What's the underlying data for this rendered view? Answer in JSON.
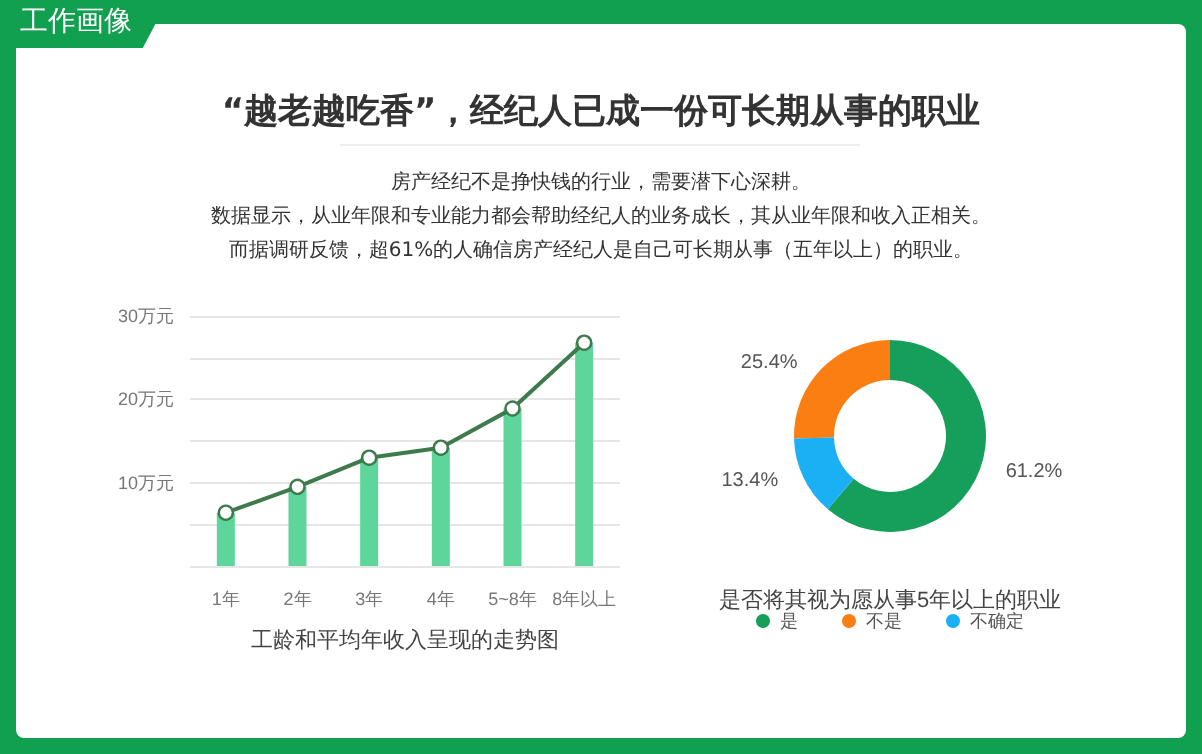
{
  "chart_data": [
    {
      "type": "other",
      "title": "“越老越吃香”，经纪人已成一份可长期从事的职业",
      "annotations": [
        "工作画像",
        "房产经纪不是挣快钱的行业，需要潜下心深耕。",
        "数据显示，从业年限和专业能力都会帮助经纪人的业务成长，其从业年限和收入正相关。",
        "而据调研反馈，超61%的人确信房产经纪人是自己可长期从事（五年以上）的职业。"
      ]
    },
    {
      "type": "bar",
      "xlabel": "工龄和平均年收入呈现的走势图",
      "categories": [
        "1年",
        "2年",
        "3年",
        "4年",
        "5~8年",
        "8年以上"
      ],
      "series": [
        {
          "type": "bar",
          "color": "#5dd59b",
          "values": [
            6.4,
            9.5,
            13.0,
            14.2,
            18.9,
            26.8
          ]
        },
        {
          "type": "line",
          "color": "#3e7a4c",
          "values": [
            6.4,
            9.5,
            13.0,
            14.2,
            18.9,
            26.8
          ]
        }
      ],
      "ylim": [
        0,
        30
      ],
      "yticks": [
        {
          "value": 0,
          "label": null
        },
        {
          "value": 5,
          "label": null
        },
        {
          "value": 10,
          "label": "10万元"
        },
        {
          "value": 15,
          "label": null
        },
        {
          "value": 20,
          "label": "20万元"
        },
        {
          "value": 25,
          "label": null
        },
        {
          "value": 30,
          "label": "30万元"
        }
      ],
      "grid": "y",
      "marker": "circle",
      "line_style": "solid"
    },
    {
      "type": "donut",
      "title": "是否将其视为愿从事5年以上的职业",
      "categories": [
        "是",
        "不是",
        "不确定"
      ],
      "values": [
        61.2,
        25.4,
        13.4
      ],
      "colors": [
        "#169f5a",
        "#fb7e12",
        "#1bb0f4"
      ],
      "value_labels": [
        "61.2%",
        "25.4%",
        "13.4%"
      ],
      "legend": "bottom"
    }
  ]
}
